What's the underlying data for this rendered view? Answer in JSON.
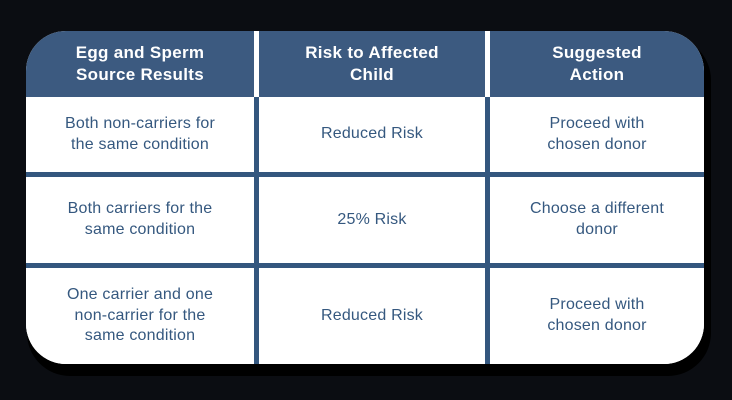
{
  "colors": {
    "page_background": "#0b0d12",
    "card_background": "#ffffff",
    "card_shadow": "#000000",
    "header_background": "#3c5a80",
    "header_text": "#ffffff",
    "body_text": "#35587f",
    "grid_border": "#33567e",
    "header_divider": "#ffffff"
  },
  "table": {
    "headers": [
      "Egg and Sperm\nSource Results",
      "Risk to Affected\nChild",
      "Suggested\nAction"
    ],
    "rows": [
      {
        "source": "Both non-carriers for\nthe same condition",
        "risk": "Reduced Risk",
        "action": "Proceed with\nchosen donor"
      },
      {
        "source": "Both carriers for the\nsame condition",
        "risk": "25% Risk",
        "action": "Choose a different\ndonor"
      },
      {
        "source": "One carrier and one\nnon-carrier for the\nsame condition",
        "risk": "Reduced Risk",
        "action": "Proceed with\nchosen donor"
      }
    ]
  },
  "chart_data": {
    "type": "table",
    "columns": [
      "Egg and Sperm Source Results",
      "Risk to Affected Child",
      "Suggested Action"
    ],
    "rows": [
      [
        "Both non-carriers for the same condition",
        "Reduced Risk",
        "Proceed with chosen donor"
      ],
      [
        "Both carriers for the same condition",
        "25% Risk",
        "Choose a different donor"
      ],
      [
        "One carrier and one non-carrier for the same condition",
        "Reduced Risk",
        "Proceed with chosen donor"
      ]
    ],
    "title": "",
    "legend": "none",
    "grid": "on"
  }
}
